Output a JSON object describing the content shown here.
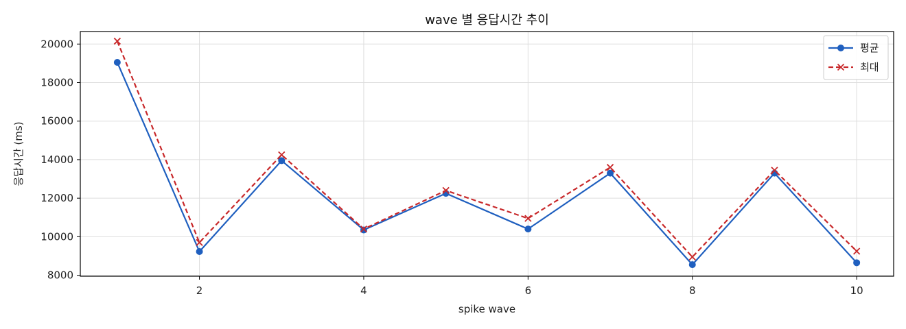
{
  "chart_data": {
    "type": "line",
    "title": "wave 별 응답시간 추이",
    "xlabel": "spike wave",
    "ylabel": "응답시간 (ms)",
    "x": [
      1,
      2,
      3,
      4,
      5,
      6,
      7,
      8,
      9,
      10
    ],
    "xticks": [
      2,
      4,
      6,
      8,
      10
    ],
    "xlim": [
      0.55,
      10.45
    ],
    "yticks": [
      8000,
      10000,
      12000,
      14000,
      16000,
      18000,
      20000
    ],
    "ylim": [
      7950,
      20650
    ],
    "grid": true,
    "legend_position": "top-right",
    "series": [
      {
        "name": "평균",
        "color": "#1f5fbf",
        "line_style": "solid",
        "marker": "circle",
        "values": [
          19050,
          9230,
          13950,
          10350,
          12250,
          10400,
          13300,
          8550,
          13300,
          8650
        ]
      },
      {
        "name": "최대",
        "color": "#c8282a",
        "line_style": "dashed",
        "marker": "x",
        "values": [
          20150,
          9700,
          14250,
          10400,
          12400,
          10950,
          13600,
          8950,
          13450,
          9250
        ]
      }
    ]
  }
}
